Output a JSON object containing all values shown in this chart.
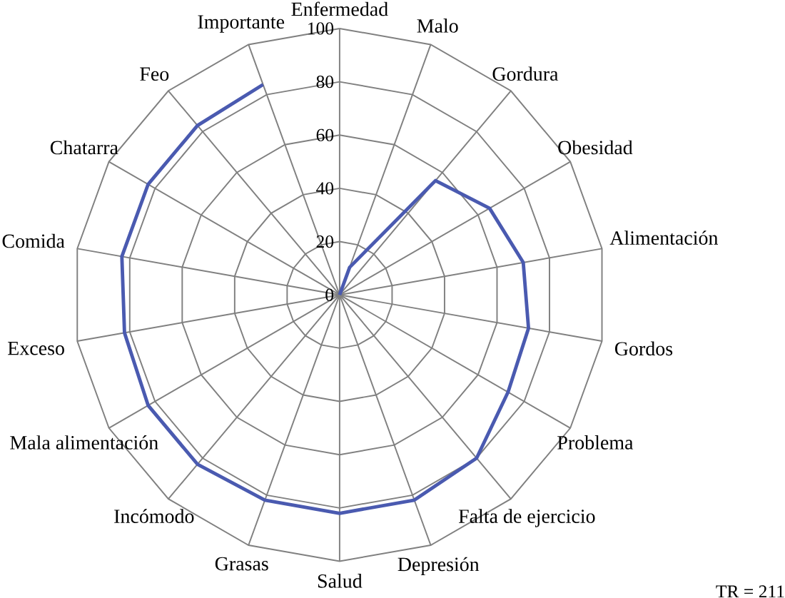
{
  "chart_data": {
    "type": "radar",
    "categories": [
      "Enfermedad",
      "Malo",
      "Gordura",
      "Obesidad",
      "Alimentación",
      "Gordos",
      "Problema",
      "Falta de ejercicio",
      "Depresión",
      "Salud",
      "Grasas",
      "Incómodo",
      "Mala alimentación",
      "Exceso",
      "Comida",
      "Chatarra",
      "Feo",
      "Importante"
    ],
    "series": [
      {
        "color": "#4a5ab0",
        "values": [
          0,
          11,
          56,
          65,
          70,
          72,
          73,
          80,
          82,
          82,
          82,
          83,
          83,
          82,
          83,
          83,
          83,
          84
        ]
      }
    ],
    "ylim": [
      0,
      100
    ],
    "yticks": [
      0,
      20,
      40,
      60,
      80,
      100
    ],
    "grid": true,
    "annotations": [
      "TR = 211"
    ]
  }
}
